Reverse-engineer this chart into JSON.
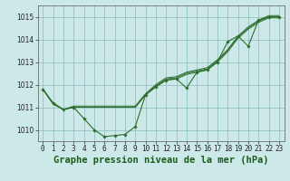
{
  "title": "Graphe pression niveau de la mer (hPa)",
  "hours": [
    0,
    1,
    2,
    3,
    4,
    5,
    6,
    7,
    8,
    9,
    10,
    11,
    12,
    13,
    14,
    15,
    16,
    17,
    18,
    19,
    20,
    21,
    22,
    23
  ],
  "line_main": [
    1011.8,
    1011.2,
    1010.9,
    1011.0,
    1010.5,
    1010.0,
    1009.7,
    1009.75,
    1009.8,
    1010.15,
    1011.55,
    1011.9,
    1012.2,
    1012.25,
    1011.85,
    1012.55,
    1012.65,
    1013.0,
    1013.9,
    1014.15,
    1013.7,
    1014.85,
    1015.0,
    1015.0
  ],
  "line_a": [
    1011.8,
    1011.15,
    1010.9,
    1011.0,
    1011.0,
    1011.0,
    1011.0,
    1011.0,
    1011.0,
    1011.0,
    1011.55,
    1011.9,
    1012.2,
    1012.25,
    1012.45,
    1012.55,
    1012.65,
    1013.0,
    1013.45,
    1014.05,
    1014.45,
    1014.75,
    1014.95,
    1014.95
  ],
  "line_b": [
    1011.8,
    1011.15,
    1010.9,
    1011.0,
    1011.0,
    1011.0,
    1011.0,
    1011.0,
    1011.0,
    1011.0,
    1011.55,
    1011.95,
    1012.25,
    1012.3,
    1012.5,
    1012.6,
    1012.7,
    1013.05,
    1013.5,
    1014.1,
    1014.5,
    1014.8,
    1015.0,
    1015.0
  ],
  "line_c": [
    1011.8,
    1011.15,
    1010.9,
    1011.05,
    1011.05,
    1011.05,
    1011.05,
    1011.05,
    1011.05,
    1011.05,
    1011.6,
    1012.0,
    1012.3,
    1012.35,
    1012.55,
    1012.65,
    1012.75,
    1013.1,
    1013.55,
    1014.15,
    1014.55,
    1014.85,
    1015.05,
    1015.05
  ],
  "line_color": "#2d6e2d",
  "bg_color": "#cce8e8",
  "grid_color": "#88bbbb",
  "title_color": "#1a5c1a",
  "ylim_min": 1009.5,
  "ylim_max": 1015.5,
  "yticks": [
    1010,
    1011,
    1012,
    1013,
    1014,
    1015
  ],
  "tick_fontsize": 5.5,
  "title_fontsize": 7.5
}
